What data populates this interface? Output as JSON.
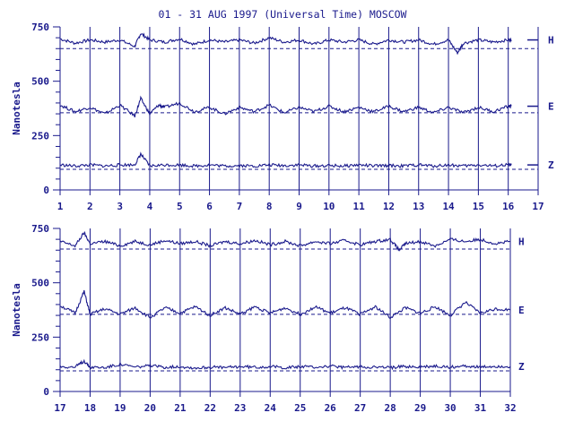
{
  "title": "01 - 31 AUG 1997 (Universal Time) MOSCOW",
  "colors": {
    "ink": "#1a1a8c",
    "background": "#ffffff"
  },
  "chart_data": [
    {
      "type": "line",
      "panel": "top",
      "x_unit": "day of month (UT)",
      "xlim": [
        1,
        17
      ],
      "x_ticks": [
        "1",
        "2",
        "3",
        "4",
        "5",
        "6",
        "7",
        "8",
        "9",
        "10",
        "11",
        "12",
        "13",
        "14",
        "15",
        "16",
        "17"
      ],
      "ylabel": "Nanotesla",
      "ylim": [
        0,
        750
      ],
      "y_ticks": [
        "0",
        "250",
        "500",
        "750"
      ],
      "grid": "vertical lines at each day",
      "series": [
        {
          "name": "H",
          "baseline": 650,
          "x": [
            1.0,
            1.5,
            2.0,
            2.5,
            3.0,
            3.5,
            3.7,
            4.0,
            4.5,
            5.0,
            5.5,
            6.0,
            6.5,
            7.0,
            7.5,
            8.0,
            8.5,
            9.0,
            9.5,
            10.0,
            10.5,
            11.0,
            11.5,
            12.0,
            12.5,
            13.0,
            13.5,
            14.0,
            14.3,
            14.5,
            15.0,
            15.5,
            16.0,
            16.1
          ],
          "values": [
            695,
            675,
            690,
            680,
            690,
            660,
            720,
            690,
            680,
            695,
            670,
            690,
            680,
            690,
            675,
            700,
            680,
            690,
            670,
            690,
            680,
            690,
            670,
            690,
            680,
            690,
            670,
            690,
            630,
            675,
            690,
            680,
            690,
            690
          ]
        },
        {
          "name": "E",
          "baseline": 355,
          "x": [
            1.0,
            1.5,
            2.0,
            2.5,
            3.0,
            3.5,
            3.7,
            4.0,
            4.3,
            4.5,
            5.0,
            5.5,
            6.0,
            6.5,
            7.0,
            7.5,
            8.0,
            8.5,
            9.0,
            9.5,
            10.0,
            10.5,
            11.0,
            11.5,
            12.0,
            12.5,
            13.0,
            13.5,
            14.0,
            14.5,
            15.0,
            15.5,
            16.0,
            16.1
          ],
          "values": [
            390,
            360,
            380,
            350,
            390,
            340,
            420,
            350,
            390,
            380,
            400,
            360,
            380,
            350,
            380,
            360,
            390,
            355,
            380,
            360,
            385,
            360,
            380,
            360,
            385,
            360,
            380,
            355,
            380,
            355,
            380,
            360,
            385,
            385
          ]
        },
        {
          "name": "Z",
          "baseline": 95,
          "x": [
            1.0,
            1.5,
            2.0,
            2.5,
            3.0,
            3.5,
            3.7,
            4.0,
            4.5,
            5.0,
            5.5,
            6.0,
            6.5,
            7.0,
            7.5,
            8.0,
            8.5,
            9.0,
            9.5,
            10.0,
            10.5,
            11.0,
            11.5,
            12.0,
            12.5,
            13.0,
            13.5,
            14.0,
            14.5,
            15.0,
            15.5,
            16.0,
            16.1
          ],
          "values": [
            115,
            110,
            115,
            110,
            115,
            115,
            165,
            110,
            115,
            115,
            110,
            115,
            110,
            112,
            110,
            115,
            112,
            115,
            110,
            112,
            110,
            115,
            110,
            112,
            110,
            115,
            110,
            115,
            110,
            115,
            110,
            115,
            115
          ]
        }
      ]
    },
    {
      "type": "line",
      "panel": "bottom",
      "x_unit": "day of month (UT)",
      "xlim": [
        17,
        32
      ],
      "x_ticks": [
        "17",
        "18",
        "19",
        "20",
        "21",
        "22",
        "23",
        "24",
        "25",
        "26",
        "27",
        "28",
        "29",
        "30",
        "31",
        "32"
      ],
      "ylabel": "Nanotesla",
      "ylim": [
        0,
        750
      ],
      "y_ticks": [
        "0",
        "250",
        "500",
        "750"
      ],
      "grid": "vertical lines at each day",
      "series": [
        {
          "name": "H",
          "baseline": 655,
          "x": [
            17.0,
            17.5,
            17.8,
            18.0,
            18.5,
            19.0,
            19.5,
            20.0,
            20.5,
            21.0,
            21.5,
            22.0,
            22.5,
            23.0,
            23.5,
            24.0,
            24.5,
            25.0,
            25.5,
            26.0,
            26.5,
            27.0,
            27.5,
            28.0,
            28.3,
            28.5,
            29.0,
            29.5,
            30.0,
            30.5,
            31.0,
            31.5,
            32.0
          ],
          "values": [
            690,
            670,
            730,
            680,
            690,
            670,
            690,
            675,
            695,
            680,
            690,
            670,
            690,
            680,
            695,
            675,
            690,
            670,
            690,
            680,
            695,
            675,
            690,
            700,
            650,
            680,
            690,
            670,
            700,
            690,
            700,
            680,
            690
          ]
        },
        {
          "name": "E",
          "baseline": 355,
          "x": [
            17.0,
            17.5,
            17.8,
            18.0,
            18.5,
            19.0,
            19.5,
            20.0,
            20.5,
            21.0,
            21.5,
            22.0,
            22.5,
            23.0,
            23.5,
            24.0,
            24.5,
            25.0,
            25.5,
            26.0,
            26.5,
            27.0,
            27.5,
            28.0,
            28.5,
            29.0,
            29.5,
            30.0,
            30.5,
            31.0,
            31.5,
            32.0
          ],
          "values": [
            395,
            360,
            460,
            355,
            380,
            355,
            385,
            340,
            385,
            360,
            390,
            350,
            385,
            355,
            390,
            360,
            385,
            355,
            390,
            360,
            385,
            355,
            390,
            340,
            385,
            360,
            390,
            350,
            410,
            360,
            380,
            375
          ]
        },
        {
          "name": "Z",
          "baseline": 95,
          "x": [
            17.0,
            17.5,
            17.8,
            18.0,
            18.5,
            19.0,
            19.5,
            20.0,
            20.5,
            21.0,
            21.5,
            22.0,
            22.5,
            23.0,
            23.5,
            24.0,
            24.5,
            25.0,
            25.5,
            26.0,
            26.5,
            27.0,
            27.5,
            28.0,
            28.5,
            29.0,
            29.5,
            30.0,
            30.5,
            31.0,
            31.5,
            32.0
          ],
          "values": [
            115,
            112,
            140,
            112,
            110,
            125,
            112,
            118,
            112,
            115,
            108,
            112,
            110,
            115,
            112,
            115,
            110,
            114,
            112,
            116,
            110,
            114,
            112,
            110,
            115,
            112,
            116,
            112,
            118,
            112,
            116,
            115
          ]
        }
      ]
    }
  ]
}
